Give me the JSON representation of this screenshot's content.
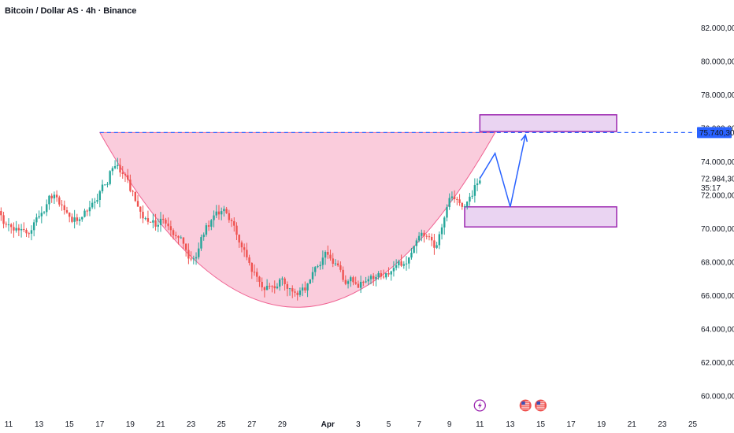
{
  "header": {
    "title": "Bitcoin / Dollar AS · 4h · Binance"
  },
  "colors": {
    "bull": "#26a69a",
    "bear": "#ef5350",
    "cup_fill": "#f8bbd0",
    "cup_edge": "#f06292",
    "zone_fill": "#ead4f2",
    "zone_border": "#9c27b0",
    "projection": "#2962ff",
    "level_line": "#2962ff",
    "price_tag_bg": "#2962ff"
  },
  "chart_data": {
    "type": "candlestick",
    "title": "Bitcoin / Dollar AS · 4h · Binance",
    "y_axis": {
      "ticks": [
        82000,
        80000,
        78000,
        76000,
        74000,
        72000,
        70000,
        68000,
        66000,
        64000,
        62000,
        60000
      ],
      "tick_labels": [
        "82.000,00",
        "80.000,00",
        "78.000,00",
        "76.000,00",
        "74.000,00",
        "72.000,00",
        "70.000,00",
        "68.000,00",
        "66.000,00",
        "64.000,00",
        "62.000,00",
        "60.000,00"
      ],
      "ylim": [
        59200,
        83000
      ],
      "side": "right"
    },
    "x_axis": {
      "tick_labels": [
        "11",
        "13",
        "15",
        "17",
        "19",
        "21",
        "23",
        "25",
        "27",
        "29",
        "Apr",
        "3",
        "5",
        "7",
        "9",
        "11",
        "13",
        "15",
        "17",
        "19",
        "21",
        "23",
        "25"
      ],
      "tick_dates": [
        "2024-03-11",
        "2024-03-13",
        "2024-03-15",
        "2024-03-17",
        "2024-03-19",
        "2024-03-21",
        "2024-03-23",
        "2024-03-25",
        "2024-03-27",
        "2024-03-29",
        "2024-04-01",
        "2024-04-03",
        "2024-04-05",
        "2024-04-07",
        "2024-04-09",
        "2024-04-11",
        "2024-04-13",
        "2024-04-15",
        "2024-04-17",
        "2024-04-19",
        "2024-04-21",
        "2024-04-23",
        "2024-04-25"
      ]
    },
    "price_path": {
      "dates": [
        "2024-03-10",
        "2024-03-11",
        "2024-03-12",
        "2024-03-13",
        "2024-03-14",
        "2024-03-15",
        "2024-03-16",
        "2024-03-17",
        "2024-03-18",
        "2024-03-19",
        "2024-03-20",
        "2024-03-21",
        "2024-03-22",
        "2024-03-23",
        "2024-03-24",
        "2024-03-25",
        "2024-03-26",
        "2024-03-27",
        "2024-03-28",
        "2024-03-29",
        "2024-03-30",
        "2024-03-31",
        "2024-04-01",
        "2024-04-02",
        "2024-04-03",
        "2024-04-04",
        "2024-04-05",
        "2024-04-06",
        "2024-04-07",
        "2024-04-08",
        "2024-04-09",
        "2024-04-10",
        "2024-04-11"
      ],
      "values": [
        71500,
        70000,
        69600,
        71000,
        72000,
        70300,
        71000,
        72500,
        74000,
        72000,
        70000,
        70500,
        69500,
        68000,
        70500,
        71500,
        69500,
        67000,
        66500,
        67000,
        66000,
        67500,
        68500,
        66500,
        66800,
        67000,
        67200,
        68000,
        70000,
        69000,
        72000,
        71500,
        72984.3
      ]
    },
    "levels": {
      "resistance": 75740.3,
      "last_price": 72984.3
    },
    "price_tags": {
      "resistance": "75.740,30",
      "last": "72.984,30",
      "countdown": "35:17"
    },
    "annotations": {
      "cup_pattern": {
        "start_date": "2024-03-17",
        "end_date": "2024-04-12",
        "rim": 75740.3,
        "bottom": 65300
      },
      "target_zone": {
        "start_date": "2024-04-11",
        "end_date": "2024-04-20",
        "low": 75800,
        "high": 76800
      },
      "support_zone": {
        "start_date": "2024-04-10",
        "end_date": "2024-04-20",
        "low": 70100,
        "high": 71300
      },
      "projection_path": {
        "dates": [
          "2024-04-11",
          "2024-04-12",
          "2024-04-13",
          "2024-04-14"
        ],
        "values": [
          73000,
          74500,
          71300,
          75600
        ]
      }
    },
    "event_markers": [
      {
        "icon": "lightning-icon",
        "date": "2024-04-11"
      },
      {
        "icon": "us-flag-icon",
        "date": "2024-04-14"
      },
      {
        "icon": "us-flag-icon",
        "date": "2024-04-15"
      }
    ],
    "grid": false,
    "legend": "none"
  }
}
